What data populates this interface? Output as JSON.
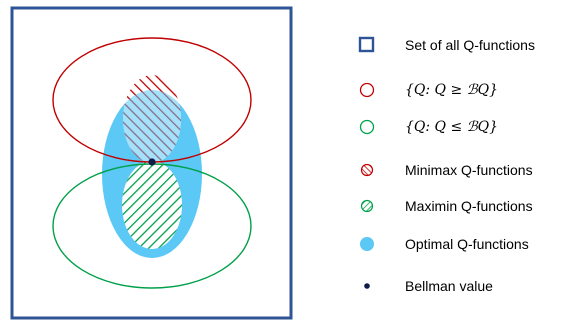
{
  "colors": {
    "border": "#2F5496",
    "upper_set": "#C00000",
    "lower_set": "#00A04A",
    "minimax_hatch": "#C00000",
    "maximin_hatch": "#00A04A",
    "optimal_fill": "#5BC8F5",
    "bellman_point": "#0D1A4A"
  },
  "legend": [
    {
      "id": "set-of-all-q-functions",
      "icon": "square-outline-icon",
      "label": "Set of all Q-functions"
    },
    {
      "id": "upper-set",
      "icon": "circle-outline-red-icon",
      "label": "{Q: Q ≥ ℬQ}"
    },
    {
      "id": "lower-set",
      "icon": "circle-outline-green-icon",
      "label": "{Q: Q ≤ ℬQ}"
    },
    {
      "id": "minimax",
      "icon": "hatched-red-circle-icon",
      "label": "Minimax Q-functions"
    },
    {
      "id": "maximin",
      "icon": "hatched-green-circle-icon",
      "label": "Maximin Q-functions"
    },
    {
      "id": "optimal",
      "icon": "filled-blue-circle-icon",
      "label": "Optimal Q-functions"
    },
    {
      "id": "bellman",
      "icon": "dot-icon",
      "label": "Bellman value"
    }
  ]
}
